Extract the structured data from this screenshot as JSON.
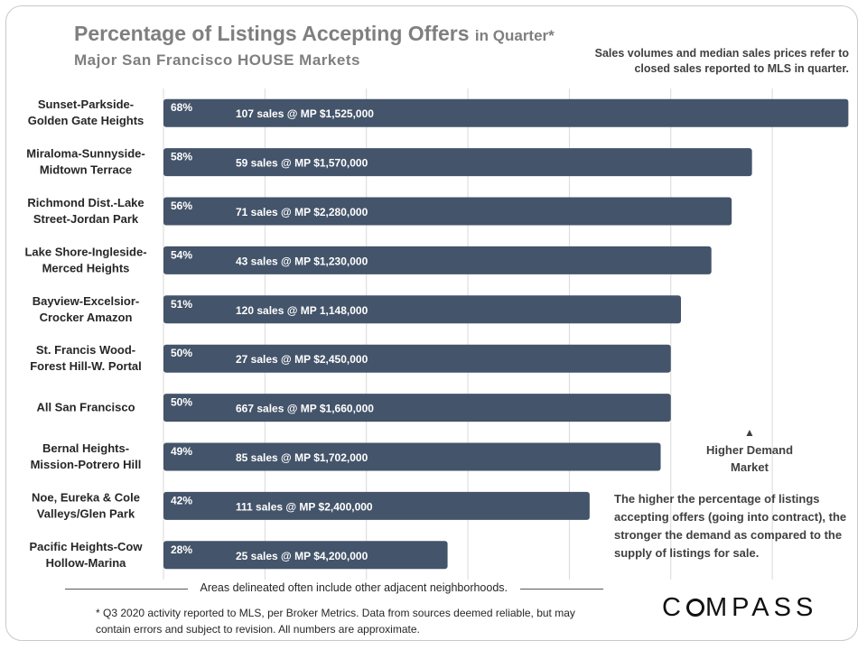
{
  "title": "Percentage of Listings Accepting Offers",
  "title_suffix": "in Quarter*",
  "subtitle": "Major  San Francisco  HOUSE Markets",
  "sales_note": "Sales volumes and median sales prices refer to closed sales reported to MLS in quarter.",
  "demand_label": "Higher Demand Market",
  "demand_marker": "▲",
  "explanation": "The higher the percentage of listings accepting offers (going into contract), the stronger the demand as compared to the supply of listings for sale.",
  "areas_note": "Areas delineated often include other adjacent neighborhoods.",
  "footnote": "* Q3 2020 activity reported to MLS, per Broker Metrics. Data from sources deemed reliable, but may contain errors and subject to revision. All numbers are approximate.",
  "logo": "COMPASS",
  "colors": {
    "bar": "#44546a",
    "grid": "#d9d9d9",
    "title": "#7f7f7f"
  },
  "chart_data": {
    "type": "bar",
    "orientation": "horizontal",
    "title": "Percentage of Listings Accepting Offers in Quarter*",
    "subtitle": "Major  San Francisco  HOUSE Markets",
    "categories": [
      [
        "Sunset-Parkside-",
        "Golden Gate Heights"
      ],
      [
        "Miraloma-Sunnyside-",
        "Midtown Terrace"
      ],
      [
        "Richmond Dist.-Lake",
        "Street-Jordan Park"
      ],
      [
        "Lake Shore-Ingleside-",
        "Merced Heights"
      ],
      [
        "Bayview-Excelsior-",
        "Crocker Amazon"
      ],
      [
        "St. Francis Wood-",
        "Forest Hill-W. Portal"
      ],
      [
        "All San Francisco"
      ],
      [
        "Bernal Heights-",
        "Mission-Potrero Hill"
      ],
      [
        "Noe, Eureka & Cole",
        "Valleys/Glen Park"
      ],
      [
        "Pacific Heights-Cow",
        "Hollow-Marina"
      ]
    ],
    "values": [
      67.5,
      58,
      56,
      54,
      51,
      50,
      50,
      49,
      42,
      28
    ],
    "value_labels": [
      "68%",
      "58%",
      "56%",
      "54%",
      "51%",
      "50%",
      "50%",
      "49%",
      "42%",
      "28%"
    ],
    "annotations": [
      "107 sales @ MP $1,525,000",
      "59 sales @ MP $1,570,000",
      "71 sales @ MP $2,280,000",
      "43 sales @ MP $1,230,000",
      "120 sales @ MP 1,148,000",
      "27 sales @ MP $2,450,000",
      "667 sales @ MP $1,660,000",
      "85 sales @ MP $1,702,000",
      "111 sales @ MP $2,400,000",
      "25 sales @ MP $4,200,000"
    ],
    "xlim": [
      0,
      68
    ],
    "grid": true,
    "legend": "none"
  }
}
